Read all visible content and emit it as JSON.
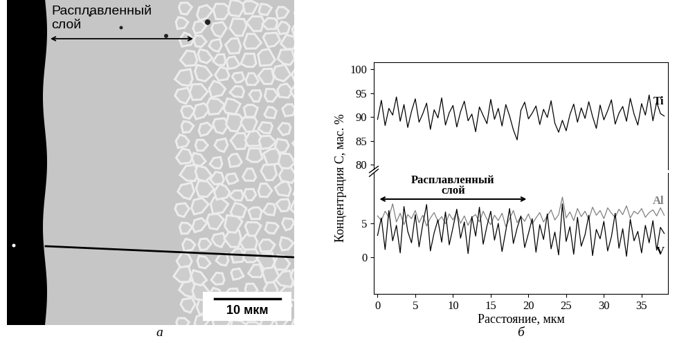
{
  "image": {
    "caption": "а",
    "layer_label": "Расплавленный\nслой",
    "scale_bar": "10 мкм"
  },
  "chart_data": [
    {
      "type": "line",
      "x": [
        0,
        0.5,
        1,
        1.5,
        2,
        2.5,
        3,
        3.5,
        4,
        4.5,
        5,
        5.5,
        6,
        6.5,
        7,
        7.5,
        8,
        8.5,
        9,
        9.5,
        10,
        10.5,
        11,
        11.5,
        12,
        12.5,
        13,
        13.5,
        14,
        14.5,
        15,
        15.5,
        16,
        16.5,
        17,
        17.5,
        18,
        18.5,
        19,
        19.5,
        20,
        20.5,
        21,
        21.5,
        22,
        22.5,
        23,
        23.5,
        24,
        24.5,
        25,
        25.5,
        26,
        26.5,
        27,
        27.5,
        28,
        28.5,
        29,
        29.5,
        30,
        30.5,
        31,
        31.5,
        32,
        32.5,
        33,
        33.5,
        34,
        34.5,
        35,
        35.5,
        36,
        36.5,
        37,
        37.5,
        38
      ],
      "xlim": [
        -0.5,
        38.5
      ],
      "ylim": [
        79,
        101.5
      ],
      "yticks": [
        80,
        85,
        90,
        95,
        100
      ],
      "tick_labels": "y",
      "series": [
        {
          "name": "Ti",
          "color": "#000000",
          "values": [
            89.5,
            93.5,
            88.2,
            91.8,
            90.4,
            94.2,
            89.1,
            92.6,
            87.8,
            91.2,
            93.8,
            88.9,
            90.7,
            92.9,
            87.4,
            91.5,
            89.8,
            94.0,
            88.3,
            90.9,
            92.4,
            87.9,
            91.1,
            93.3,
            89.2,
            90.6,
            86.9,
            92.1,
            90.3,
            88.6,
            93.7,
            89.5,
            91.8,
            88.1,
            92.6,
            90.2,
            87.3,
            85.2,
            91.4,
            93.1,
            89.6,
            90.8,
            92.3,
            88.4,
            91.6,
            89.9,
            93.4,
            88.7,
            86.8,
            89.3,
            87.1,
            90.5,
            92.7,
            88.9,
            91.9,
            89.7,
            93.2,
            90.1,
            87.6,
            92.5,
            89.4,
            91.3,
            93.6,
            88.5,
            90.8,
            92.2,
            89.1,
            93.9,
            90.6,
            88.3,
            92.8,
            90.4,
            94.6,
            89.2,
            93.1,
            90.7,
            90.2
          ]
        }
      ]
    },
    {
      "type": "line",
      "x": [
        0,
        0.5,
        1,
        1.5,
        2,
        2.5,
        3,
        3.5,
        4,
        4.5,
        5,
        5.5,
        6,
        6.5,
        7,
        7.5,
        8,
        8.5,
        9,
        9.5,
        10,
        10.5,
        11,
        11.5,
        12,
        12.5,
        13,
        13.5,
        14,
        14.5,
        15,
        15.5,
        16,
        16.5,
        17,
        17.5,
        18,
        18.5,
        19,
        19.5,
        20,
        20.5,
        21,
        21.5,
        22,
        22.5,
        23,
        23.5,
        24,
        24.5,
        25,
        25.5,
        26,
        26.5,
        27,
        27.5,
        28,
        28.5,
        29,
        29.5,
        30,
        30.5,
        31,
        31.5,
        32,
        32.5,
        33,
        33.5,
        34,
        34.5,
        35,
        35.5,
        36,
        36.5,
        37,
        37.5,
        38
      ],
      "xlim": [
        -0.5,
        38.5
      ],
      "xticks": [
        0,
        5,
        10,
        15,
        20,
        25,
        30,
        35
      ],
      "ylim": [
        -5.5,
        12.5
      ],
      "yticks": [
        0,
        5
      ],
      "x_label": "Расстояние, мкм",
      "y_label": "Концентрация С, мас. %",
      "caption": "б",
      "annotation": {
        "text": "Расплавленный\nслой",
        "x": [
          0,
          20
        ],
        "y": 8.6
      },
      "series": [
        {
          "name": "Al",
          "color": "#808080",
          "values": [
            6.1,
            5.4,
            6.8,
            5.9,
            7.9,
            5.2,
            6.5,
            4.8,
            6.3,
            5.7,
            6.9,
            5.1,
            6.2,
            4.6,
            5.8,
            6.6,
            5.3,
            6.0,
            4.9,
            6.4,
            5.5,
            6.7,
            5.0,
            6.1,
            4.7,
            5.9,
            6.3,
            5.2,
            6.8,
            5.6,
            4.8,
            6.2,
            5.4,
            6.5,
            4.5,
            5.7,
            6.9,
            5.1,
            6.0,
            5.3,
            6.4,
            4.9,
            5.8,
            6.6,
            5.2,
            6.1,
            7.0,
            5.5,
            6.3,
            8.9,
            5.8,
            6.7,
            5.4,
            7.2,
            6.0,
            6.8,
            5.6,
            7.4,
            6.2,
            6.9,
            5.7,
            7.3,
            6.5,
            5.9,
            7.1,
            6.3,
            7.6,
            5.8,
            6.8,
            6.4,
            7.2,
            5.9,
            6.6,
            7.0,
            6.1,
            7.3,
            6.2
          ]
        },
        {
          "name": "V",
          "color": "#000000",
          "values": [
            3.2,
            5.8,
            1.1,
            6.9,
            2.4,
            4.7,
            0.6,
            7.5,
            3.8,
            2.1,
            6.3,
            1.5,
            4.9,
            7.8,
            0.9,
            3.6,
            5.5,
            2.2,
            6.7,
            1.8,
            4.4,
            7.1,
            2.8,
            5.2,
            0.5,
            6.0,
            3.1,
            7.4,
            1.9,
            4.6,
            6.8,
            2.5,
            5.0,
            0.8,
            3.9,
            7.2,
            2.0,
            4.3,
            6.1,
            1.4,
            3.5,
            5.7,
            0.7,
            4.8,
            2.6,
            6.4,
            1.2,
            3.7,
            0.3,
            7.9,
            2.3,
            4.5,
            0.4,
            5.9,
            1.6,
            3.3,
            6.2,
            0.2,
            4.1,
            2.7,
            5.3,
            0.9,
            3.0,
            6.5,
            1.3,
            4.2,
            0.1,
            5.6,
            2.4,
            3.8,
            0.6,
            4.7,
            2.1,
            5.4,
            1.0,
            4.4,
            3.5
          ]
        }
      ]
    }
  ]
}
